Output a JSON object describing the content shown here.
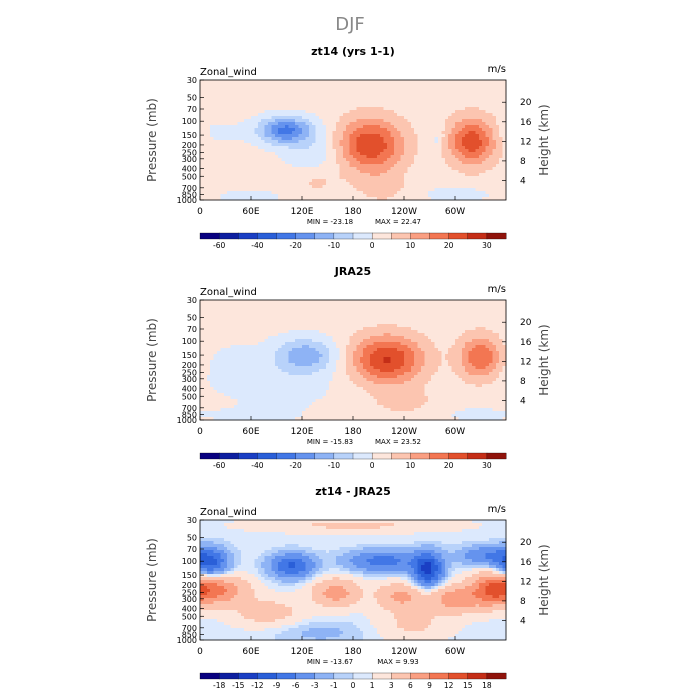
{
  "figure_title": "DJF",
  "chart_data": [
    {
      "type": "heatmap",
      "title": "zt14 (yrs 1-1)",
      "variable": "Zonal_wind",
      "units": "m/s",
      "ylabel": "Pressure (mb)",
      "ylabel_right": "Height (km)",
      "x_ticks": [
        "0",
        "60E",
        "120E",
        "180",
        "120W",
        "60W"
      ],
      "x_tick_values": [
        0,
        60,
        120,
        180,
        240,
        300
      ],
      "xlim": [
        0,
        360
      ],
      "y_ticks": [
        "30",
        "50",
        "70",
        "100",
        "150",
        "200",
        "250",
        "300",
        "400",
        "500",
        "700",
        "850",
        "1000"
      ],
      "y_tick_values": [
        30,
        50,
        70,
        100,
        150,
        200,
        250,
        300,
        400,
        500,
        700,
        850,
        1000
      ],
      "ylim": [
        1000,
        30
      ],
      "height_ticks": [
        "4",
        "8",
        "12",
        "16",
        "20"
      ],
      "height_tick_values": [
        4,
        8,
        12,
        16,
        20
      ],
      "min_label": "MIN = -23.18",
      "max_label": "MAX = 22.47",
      "min": -23.18,
      "max": 22.47,
      "colorbar_labels": [
        "-60",
        "-40",
        "-20",
        "-10",
        "0",
        "10",
        "20",
        "30"
      ],
      "levels": [
        -70,
        -60,
        -50,
        -40,
        -30,
        -20,
        -15,
        -10,
        -5,
        0,
        5,
        10,
        15,
        20,
        25,
        30,
        35
      ],
      "background_value": 2,
      "features": [
        {
          "lon": 100,
          "p": 130,
          "value": -23,
          "sx": 22,
          "sy": 0.28
        },
        {
          "lon": 135,
          "p": 280,
          "value": -7,
          "sx": 25,
          "sy": 0.55
        },
        {
          "lon": 200,
          "p": 200,
          "value": 22.5,
          "sx": 28,
          "sy": 0.55
        },
        {
          "lon": 320,
          "p": 180,
          "value": 21,
          "sx": 20,
          "sy": 0.5
        },
        {
          "lon": 278,
          "p": 170,
          "value": -5,
          "sx": 6,
          "sy": 0.25
        },
        {
          "lon": 20,
          "p": 140,
          "value": -3,
          "sx": 25,
          "sy": 0.3
        },
        {
          "lon": 135,
          "p": 550,
          "value": 6,
          "sx": 22,
          "sy": 0.35
        },
        {
          "lon": 215,
          "p": 700,
          "value": 5,
          "sx": 20,
          "sy": 0.3
        },
        {
          "lon": 60,
          "p": 900,
          "value": -3,
          "sx": 40,
          "sy": 0.2
        },
        {
          "lon": 300,
          "p": 850,
          "value": -4,
          "sx": 30,
          "sy": 0.2
        },
        {
          "lon": 340,
          "p": 40,
          "value": -2,
          "sx": 40,
          "sy": 0.2
        }
      ]
    },
    {
      "type": "heatmap",
      "title": "JRA25",
      "variable": "Zonal_wind",
      "units": "m/s",
      "ylabel": "Pressure (mb)",
      "ylabel_right": "Height (km)",
      "x_ticks": [
        "0",
        "60E",
        "120E",
        "180",
        "120W",
        "60W"
      ],
      "x_tick_values": [
        0,
        60,
        120,
        180,
        240,
        300
      ],
      "xlim": [
        0,
        360
      ],
      "y_ticks": [
        "30",
        "50",
        "70",
        "100",
        "150",
        "200",
        "250",
        "300",
        "400",
        "500",
        "700",
        "850",
        "1000"
      ],
      "y_tick_values": [
        30,
        50,
        70,
        100,
        150,
        200,
        250,
        300,
        400,
        500,
        700,
        850,
        1000
      ],
      "ylim": [
        1000,
        30
      ],
      "height_ticks": [
        "4",
        "8",
        "12",
        "16",
        "20"
      ],
      "height_tick_values": [
        4,
        8,
        12,
        16,
        20
      ],
      "min_label": "MIN = -15.83",
      "max_label": "MAX = 23.52",
      "min": -15.83,
      "max": 23.52,
      "colorbar_labels": [
        "-60",
        "-40",
        "-20",
        "-10",
        "0",
        "10",
        "20",
        "30"
      ],
      "levels": [
        -70,
        -60,
        -50,
        -40,
        -30,
        -20,
        -15,
        -10,
        -5,
        0,
        5,
        10,
        15,
        20,
        25,
        30,
        35
      ],
      "background_value": 2,
      "features": [
        {
          "lon": 125,
          "p": 150,
          "value": -14,
          "sx": 25,
          "sy": 0.35
        },
        {
          "lon": 100,
          "p": 300,
          "value": -4,
          "sx": 50,
          "sy": 0.7
        },
        {
          "lon": 30,
          "p": 220,
          "value": -3,
          "sx": 25,
          "sy": 0.5
        },
        {
          "lon": 220,
          "p": 170,
          "value": 23.5,
          "sx": 30,
          "sy": 0.5
        },
        {
          "lon": 330,
          "p": 160,
          "value": 18,
          "sx": 18,
          "sy": 0.45
        },
        {
          "lon": 240,
          "p": 600,
          "value": 4,
          "sx": 30,
          "sy": 0.3
        },
        {
          "lon": 60,
          "p": 900,
          "value": -2.5,
          "sx": 40,
          "sy": 0.2
        },
        {
          "lon": 320,
          "p": 850,
          "value": -3,
          "sx": 30,
          "sy": 0.2
        }
      ]
    },
    {
      "type": "heatmap",
      "title": "zt14 - JRA25",
      "variable": "Zonal_wind",
      "units": "m/s",
      "ylabel": "Pressure (mb)",
      "ylabel_right": "Height (km)",
      "x_ticks": [
        "0",
        "60E",
        "120E",
        "180",
        "120W",
        "60W"
      ],
      "x_tick_values": [
        0,
        60,
        120,
        180,
        240,
        300
      ],
      "xlim": [
        0,
        360
      ],
      "y_ticks": [
        "30",
        "50",
        "70",
        "100",
        "150",
        "200",
        "250",
        "300",
        "400",
        "500",
        "700",
        "850",
        "1000"
      ],
      "y_tick_values": [
        30,
        50,
        70,
        100,
        150,
        200,
        250,
        300,
        400,
        500,
        700,
        850,
        1000
      ],
      "ylim": [
        1000,
        30
      ],
      "height_ticks": [
        "4",
        "8",
        "12",
        "16",
        "20"
      ],
      "height_tick_values": [
        4,
        8,
        12,
        16,
        20
      ],
      "min_label": "MIN = -13.67",
      "max_label": "MAX = 9.93",
      "min": -13.67,
      "max": 9.93,
      "colorbar_labels": [
        "-18",
        "-15",
        "-12",
        "-9",
        "-6",
        "-3",
        "-1",
        "0",
        "1",
        "3",
        "6",
        "9",
        "12",
        "15",
        "18"
      ],
      "levels": [
        -21,
        -18,
        -15,
        -12,
        -9,
        -6,
        -3,
        -1,
        0,
        1,
        3,
        6,
        9,
        12,
        15,
        18,
        21
      ],
      "background_value": 0.5,
      "features": [
        {
          "lon": 10,
          "p": 105,
          "value": -11,
          "sx": 16,
          "sy": 0.3
        },
        {
          "lon": 108,
          "p": 115,
          "value": -10,
          "sx": 18,
          "sy": 0.25
        },
        {
          "lon": 215,
          "p": 100,
          "value": -8,
          "sx": 30,
          "sy": 0.22
        },
        {
          "lon": 268,
          "p": 130,
          "value": -13.5,
          "sx": 12,
          "sy": 0.35
        },
        {
          "lon": 335,
          "p": 85,
          "value": -6,
          "sx": 22,
          "sy": 0.2
        },
        {
          "lon": 20,
          "p": 230,
          "value": 9,
          "sx": 25,
          "sy": 0.3
        },
        {
          "lon": 160,
          "p": 250,
          "value": 7,
          "sx": 20,
          "sy": 0.3
        },
        {
          "lon": 235,
          "p": 280,
          "value": 6,
          "sx": 20,
          "sy": 0.3
        },
        {
          "lon": 345,
          "p": 220,
          "value": 9.5,
          "sx": 18,
          "sy": 0.35
        },
        {
          "lon": 300,
          "p": 300,
          "value": 7,
          "sx": 25,
          "sy": 0.3
        },
        {
          "lon": 180,
          "p": 35,
          "value": 3,
          "sx": 80,
          "sy": 0.15
        },
        {
          "lon": 80,
          "p": 450,
          "value": 4,
          "sx": 30,
          "sy": 0.3
        },
        {
          "lon": 140,
          "p": 800,
          "value": -2,
          "sx": 40,
          "sy": 0.25
        },
        {
          "lon": 250,
          "p": 650,
          "value": 3,
          "sx": 30,
          "sy": 0.3
        }
      ]
    }
  ],
  "palette": [
    "#08007f",
    "#0d1fa0",
    "#1a3fc4",
    "#2a5fd8",
    "#4277e6",
    "#6593ee",
    "#8eb3f5",
    "#b8d2fa",
    "#dce9fd",
    "#fde6dc",
    "#fcc5b0",
    "#fa9f82",
    "#f37652",
    "#e2502c",
    "#c42e17",
    "#8f130b"
  ]
}
